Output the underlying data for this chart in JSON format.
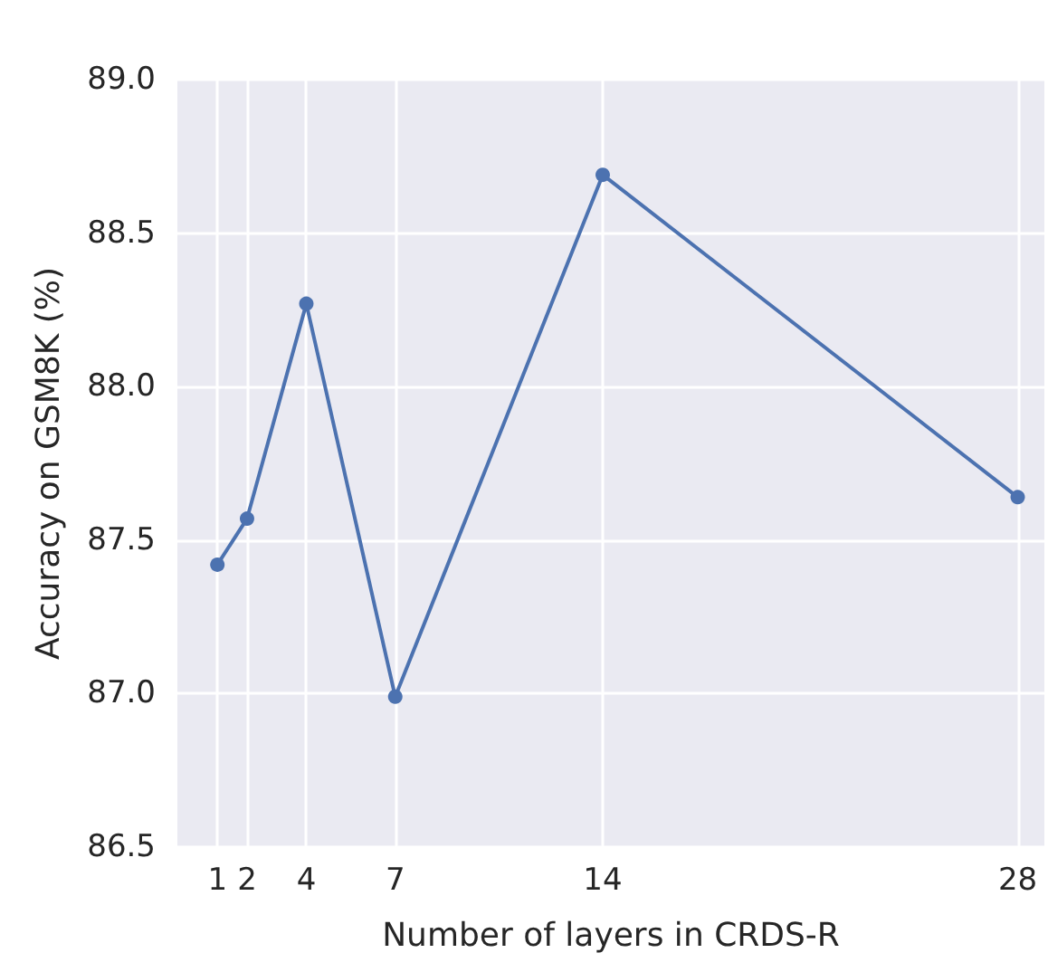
{
  "chart_data": {
    "type": "line",
    "xlabel": "Number of layers in CRDS-R",
    "ylabel": "Accuracy on GSM8K (%)",
    "x": [
      1,
      2,
      4,
      7,
      14,
      28
    ],
    "series": [
      {
        "color": "#4c72b0",
        "values": [
          87.42,
          87.57,
          88.27,
          86.99,
          88.69,
          87.64
        ]
      }
    ],
    "xlim": [
      -0.35,
      28.9
    ],
    "xticks": [
      1,
      2,
      4,
      7,
      14,
      28
    ],
    "ylim": [
      86.5,
      89.0
    ],
    "yticks": [
      {
        "value": 86.5,
        "label": "86.5"
      },
      {
        "value": 87.0,
        "label": "87.0"
      },
      {
        "value": 87.5,
        "label": "87.5"
      },
      {
        "value": 88.0,
        "label": "88.0"
      },
      {
        "value": 88.5,
        "label": "88.5"
      },
      {
        "value": 89.0,
        "label": "89.0"
      }
    ],
    "grid": true,
    "marker": "circle",
    "line_style": "solid"
  }
}
